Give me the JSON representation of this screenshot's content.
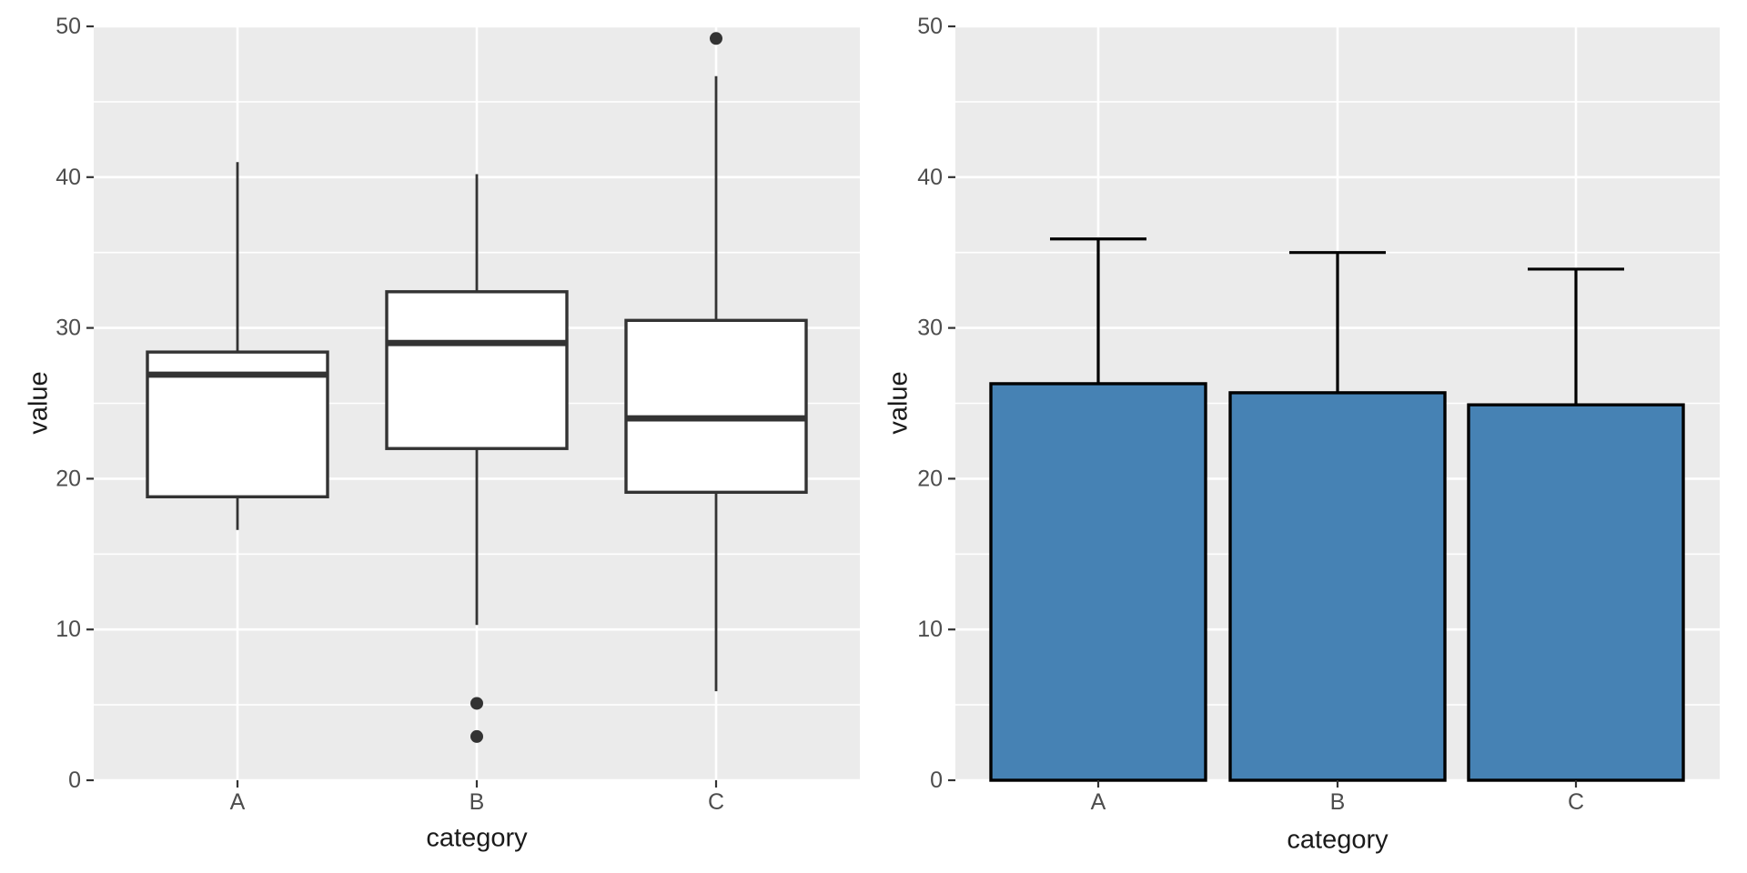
{
  "style": {
    "panel_bg": "#EBEBEB",
    "grid_color": "#FFFFFF",
    "tick_color": "#333333",
    "tick_label_color": "#4D4D4D",
    "axis_title_color": "#1A1A1A",
    "box_stroke": "#333333",
    "box_fill": "#FFFFFF",
    "outlier_color": "#333333",
    "bar_fill": "#4682B4",
    "bar_stroke": "#000000"
  },
  "chart_data": [
    {
      "id": "boxplot",
      "type": "boxplot",
      "title": "",
      "xlabel": "category",
      "ylabel": "value",
      "categories": [
        "A",
        "B",
        "C"
      ],
      "ylim": [
        0,
        50
      ],
      "yticks": [
        0,
        10,
        20,
        30,
        40,
        50
      ],
      "yminor": [
        5,
        15,
        25,
        35,
        45
      ],
      "grid": "on",
      "legend": "none",
      "series": [
        {
          "category": "A",
          "lower_whisker": 16.6,
          "q1": 18.8,
          "median": 26.9,
          "q3": 28.4,
          "upper_whisker": 41.0,
          "outliers": []
        },
        {
          "category": "B",
          "lower_whisker": 10.3,
          "q1": 22.0,
          "median": 29.0,
          "q3": 32.4,
          "upper_whisker": 40.2,
          "outliers": [
            5.1,
            2.9
          ]
        },
        {
          "category": "C",
          "lower_whisker": 5.9,
          "q1": 19.1,
          "median": 24.0,
          "q3": 30.5,
          "upper_whisker": 46.7,
          "outliers": [
            49.2
          ]
        }
      ]
    },
    {
      "id": "barplot",
      "type": "bar",
      "title": "",
      "xlabel": "category",
      "ylabel": "value",
      "categories": [
        "A",
        "B",
        "C"
      ],
      "ylim": [
        0,
        50
      ],
      "yticks": [
        0,
        10,
        20,
        30,
        40,
        50
      ],
      "yminor": [
        5,
        15,
        25,
        35,
        45
      ],
      "grid": "on",
      "legend": "none",
      "values": [
        26.3,
        25.7,
        24.9
      ],
      "error_top": [
        35.9,
        35.0,
        33.9
      ]
    }
  ]
}
